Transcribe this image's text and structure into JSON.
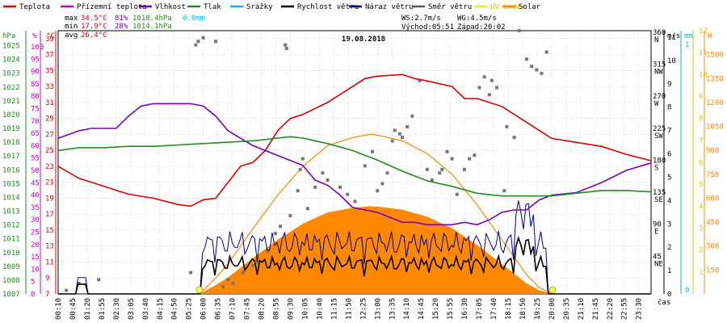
{
  "chart_data": {
    "type": "line",
    "title": "19.08.2018",
    "xlabel": "čas",
    "legend": [
      {
        "label": "Teplota",
        "color": "#dd0000"
      },
      {
        "label": "Přízemní teplota",
        "color": "#cc00cc"
      },
      {
        "label": "Vlhkost",
        "color": "#7700bb"
      },
      {
        "label": "Tlak",
        "color": "#228b22"
      },
      {
        "label": "Srážky",
        "color": "#00bbdd"
      },
      {
        "label": "Rychlost větru",
        "color": "#000000"
      },
      {
        "label": "Náraz větru",
        "color": "#00008b"
      },
      {
        "label": "Směr větru",
        "color": "#555555"
      },
      {
        "label": "UV index",
        "color": "#eeee00"
      },
      {
        "label": "Solar",
        "color": "#ff8800"
      }
    ],
    "stats": {
      "max_label": "max",
      "max_temp": "34.5°C",
      "max_hum": "81%",
      "max_press": "1018.4hPa",
      "max_rain": "0.0mm",
      "min_label": "min",
      "min_temp": "17.9°C",
      "min_hum": "28%",
      "min_press": "1014.1hPa",
      "avg_label": "avg",
      "avg_temp": "26.4°C",
      "ws": "WS:2.7m/s",
      "wg": "WG:4.5m/s",
      "sunrise": "Východ:05:51",
      "sunset": "Západ:20:02"
    },
    "axes_left": {
      "press_unit": "hPa",
      "press_ticks": [
        1007,
        1008,
        1009,
        1010,
        1011,
        1012,
        1013,
        1014,
        1015,
        1016,
        1017,
        1018,
        1019,
        1020,
        1021,
        1022,
        1023,
        1024,
        1025
      ],
      "hum_unit": "%",
      "hum_ticks": [
        0,
        5,
        10,
        15,
        20,
        25,
        30,
        35,
        40,
        45,
        50,
        55,
        60,
        65,
        70,
        75,
        80,
        85,
        90,
        95,
        100
      ],
      "temp_unit": "°C",
      "temp_ticks": [
        7,
        9,
        11,
        13,
        15,
        17,
        19,
        21,
        23,
        25,
        27,
        29,
        31,
        33,
        35,
        37,
        39
      ],
      "ylim_temp": [
        7,
        40
      ],
      "ylim_hum": [
        0,
        100
      ],
      "ylim_press": [
        1007,
        1025.5
      ]
    },
    "axes_right": {
      "wind_unit": "m/s",
      "wind_ticks": [
        0,
        1,
        2,
        3,
        4,
        5,
        6,
        7,
        8,
        9,
        10,
        11
      ],
      "dir_ticks": [
        {
          "deg": "45",
          "dir": "NE"
        },
        {
          "deg": "90",
          "dir": "E"
        },
        {
          "deg": "135",
          "dir": "SE"
        },
        {
          "deg": "180",
          "dir": "S"
        },
        {
          "deg": "225",
          "dir": "SW"
        },
        {
          "deg": "270",
          "dir": "W"
        },
        {
          "deg": "315",
          "dir": "NW"
        },
        {
          "deg": "360",
          "dir": "N"
        }
      ],
      "rain_unit": "mm",
      "rain_ticks": [
        0,
        1
      ],
      "solar_unit": "W",
      "solar_ticks": [
        150,
        300,
        450,
        600,
        750,
        900,
        1050,
        1200,
        1350,
        1500
      ],
      "uv_ticks": [
        1,
        2,
        3,
        4,
        5,
        6,
        7,
        8,
        9,
        10,
        11,
        12
      ]
    },
    "x_ticks": [
      "00:10",
      "00:45",
      "01:20",
      "01:55",
      "02:30",
      "03:05",
      "03:40",
      "04:15",
      "04:50",
      "05:25",
      "06:00",
      "06:35",
      "07:10",
      "07:45",
      "08:20",
      "08:55",
      "09:30",
      "10:05",
      "10:40",
      "11:15",
      "11:50",
      "12:25",
      "13:00",
      "13:35",
      "14:10",
      "14:45",
      "15:20",
      "15:55",
      "16:30",
      "17:05",
      "17:40",
      "18:15",
      "18:50",
      "19:25",
      "20:00",
      "20:35",
      "21:10",
      "21:45",
      "22:20",
      "22:55",
      "23:30"
    ],
    "xlim_hours": [
      0.17,
      24.0
    ],
    "series": [
      {
        "name": "Teplota",
        "unit": "°C",
        "x": [
          0.17,
          1,
          2,
          3,
          4,
          5,
          5.5,
          6,
          6.5,
          7,
          7.5,
          8,
          8.5,
          9,
          9.5,
          10,
          11,
          12,
          12.5,
          13,
          14,
          14.5,
          15,
          16,
          16.5,
          17,
          17.5,
          18,
          19,
          20,
          21,
          22,
          23,
          24
        ],
        "values": [
          23,
          21.5,
          20.5,
          19.5,
          19,
          18.2,
          18,
          18.8,
          19,
          21,
          23,
          23.5,
          25,
          27.5,
          29,
          29.5,
          31,
          33,
          34,
          34.3,
          34.5,
          34,
          33.7,
          33,
          31.5,
          31.5,
          31,
          30.5,
          28.5,
          26.5,
          26,
          25.5,
          24.5,
          23.7
        ]
      },
      {
        "name": "Vlhkost",
        "unit": "%",
        "x": [
          0.17,
          1,
          1.5,
          2,
          2.5,
          3,
          3.5,
          4,
          5,
          5.5,
          6,
          6.5,
          7,
          7.5,
          8,
          8.5,
          9,
          9.5,
          10,
          10.5,
          11,
          11.5,
          12,
          13,
          14,
          14.5,
          15,
          16,
          16.5,
          17,
          17.5,
          18,
          18.5,
          19,
          19.5,
          20,
          21,
          22,
          23,
          24
        ],
        "values": [
          63,
          66,
          67,
          67,
          67,
          72,
          76,
          77,
          77,
          77,
          76,
          72,
          66,
          63,
          60,
          58,
          56,
          54,
          52,
          46,
          44,
          40,
          35,
          33,
          29,
          29,
          28,
          28,
          29,
          28,
          30,
          33,
          34,
          34,
          38,
          40,
          41,
          45,
          50,
          53
        ]
      },
      {
        "name": "Tlak",
        "unit": "hPa",
        "x": [
          0.17,
          1,
          2,
          3,
          4,
          5,
          6,
          7,
          8,
          9,
          9.5,
          10,
          11,
          12,
          13,
          14,
          15,
          16,
          17,
          18,
          19,
          20,
          21,
          22,
          23,
          24
        ],
        "values": [
          1017.4,
          1017.6,
          1017.6,
          1017.7,
          1017.7,
          1017.8,
          1017.9,
          1018.0,
          1018.1,
          1018.3,
          1018.4,
          1018.3,
          1017.9,
          1017.4,
          1016.7,
          1015.9,
          1015.2,
          1014.8,
          1014.3,
          1014.1,
          1014.1,
          1014.1,
          1014.3,
          1014.5,
          1014.5,
          1014.4
        ]
      },
      {
        "name": "Solar",
        "unit": "W",
        "x": [
          5.85,
          6.5,
          7,
          8,
          9,
          10,
          11,
          12,
          12.7,
          13,
          14,
          15,
          16,
          17,
          18,
          19,
          19.5,
          20.04
        ],
        "values": [
          0,
          100,
          190,
          410,
          620,
          800,
          930,
          980,
          1000,
          995,
          960,
          880,
          750,
          560,
          340,
          120,
          40,
          0
        ]
      }
    ],
    "wind_dir_deg": [
      [
        0.5,
        5
      ],
      [
        1,
        15
      ],
      [
        1.8,
        20
      ],
      [
        5.5,
        30
      ],
      [
        5.7,
        350
      ],
      [
        5.8,
        355
      ],
      [
        6.0,
        360
      ],
      [
        6.5,
        355
      ],
      [
        6.8,
        10
      ],
      [
        7.0,
        20
      ],
      [
        7.2,
        15
      ],
      [
        7.6,
        30
      ],
      [
        8.0,
        40
      ],
      [
        8.2,
        45
      ],
      [
        8.6,
        60
      ],
      [
        8.9,
        85
      ],
      [
        9.1,
        95
      ],
      [
        9.3,
        350
      ],
      [
        9.35,
        345
      ],
      [
        9.5,
        110
      ],
      [
        9.8,
        145
      ],
      [
        9.9,
        175
      ],
      [
        10.0,
        190
      ],
      [
        10.2,
        120
      ],
      [
        10.5,
        150
      ],
      [
        10.8,
        170
      ],
      [
        11.0,
        160
      ],
      [
        11.5,
        150
      ],
      [
        11.8,
        140
      ],
      [
        12.1,
        130
      ],
      [
        12.5,
        180
      ],
      [
        12.8,
        200
      ],
      [
        13.0,
        145
      ],
      [
        13.2,
        155
      ],
      [
        13.4,
        170
      ],
      [
        13.6,
        215
      ],
      [
        13.7,
        230
      ],
      [
        13.9,
        225
      ],
      [
        14.0,
        220
      ],
      [
        14.2,
        235
      ],
      [
        14.4,
        250
      ],
      [
        14.7,
        300
      ],
      [
        15.0,
        175
      ],
      [
        15.2,
        160
      ],
      [
        15.5,
        170
      ],
      [
        15.6,
        175
      ],
      [
        15.8,
        200
      ],
      [
        16.0,
        190
      ],
      [
        16.2,
        140
      ],
      [
        16.5,
        175
      ],
      [
        16.7,
        190
      ],
      [
        16.9,
        195
      ],
      [
        17.1,
        290
      ],
      [
        17.3,
        305
      ],
      [
        17.5,
        280
      ],
      [
        17.6,
        300
      ],
      [
        17.8,
        290
      ],
      [
        18.1,
        145
      ],
      [
        18.2,
        235
      ],
      [
        18.5,
        220
      ],
      [
        18.7,
        370
      ],
      [
        19.0,
        330
      ],
      [
        19.2,
        320
      ],
      [
        19.4,
        315
      ],
      [
        19.6,
        310
      ],
      [
        19.8,
        340
      ]
    ],
    "wind_speed_note": "Rychlost větru and Náraz větru shown as 0–5 m/s traces, gust peaks ≈4.5 m/s near 18:40"
  }
}
